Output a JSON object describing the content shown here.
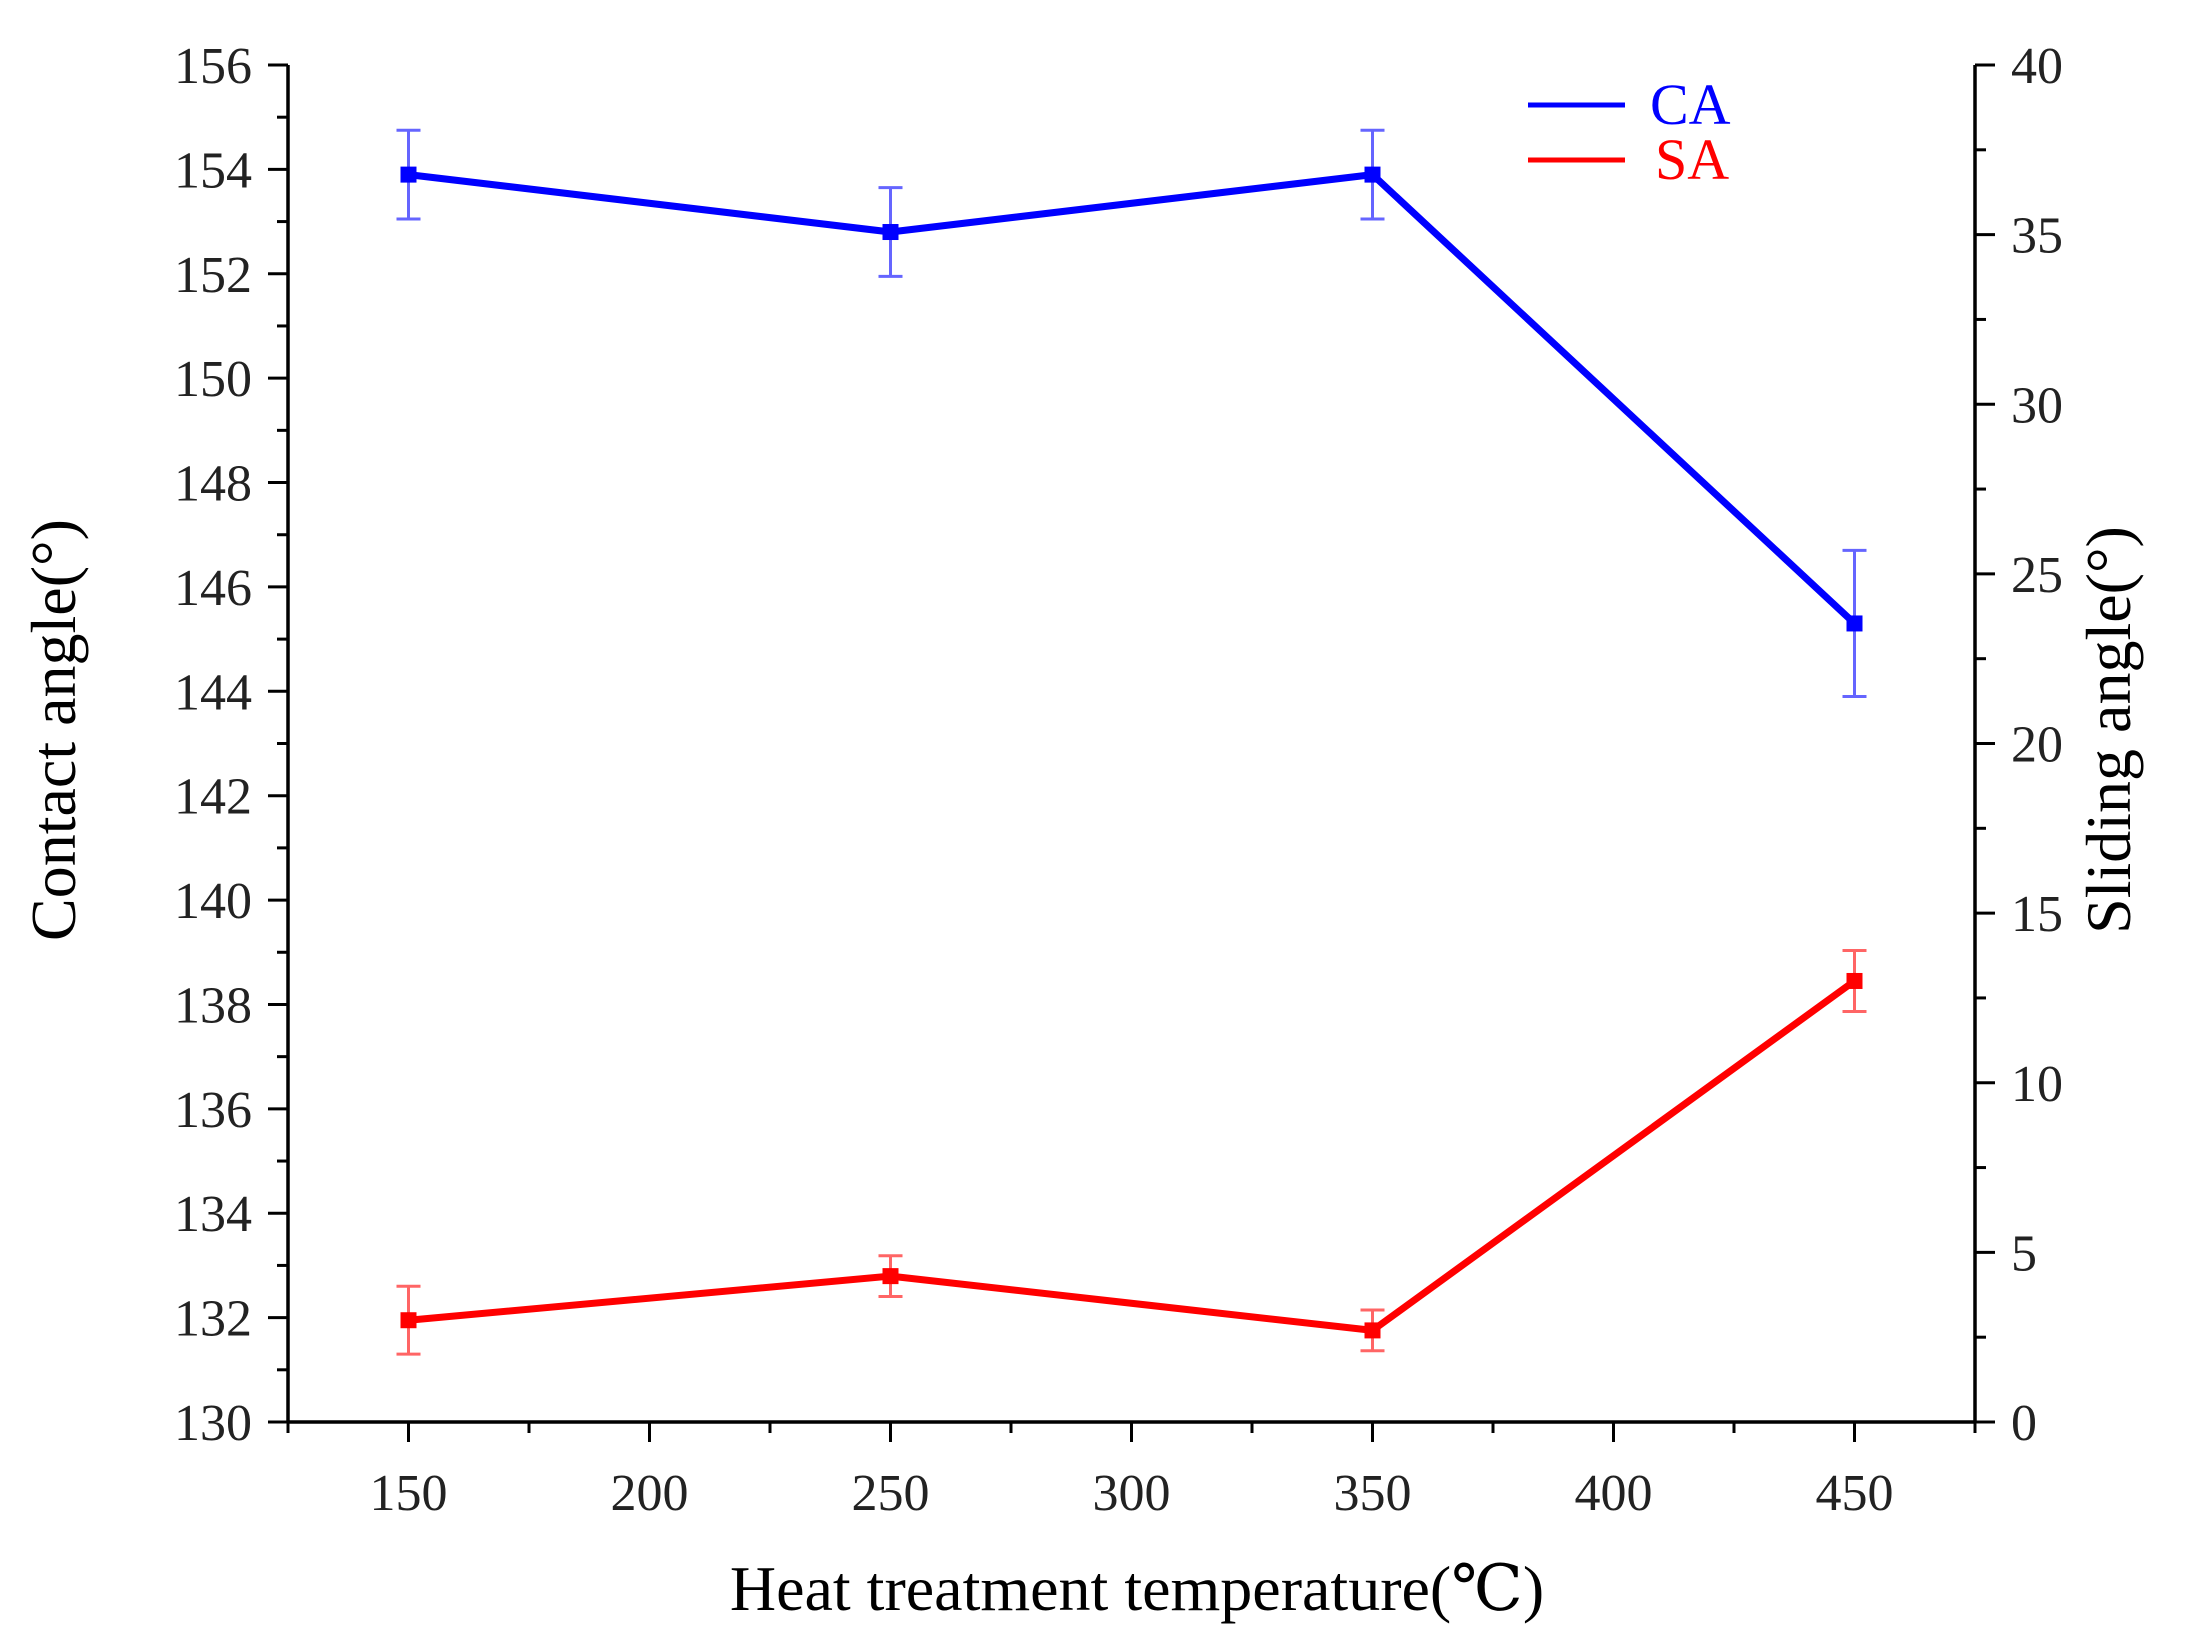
{
  "chart_data": {
    "type": "line",
    "x": [
      150,
      250,
      350,
      450
    ],
    "xlabel": "Heat treatment temperature(℃)",
    "xlim": [
      125,
      475
    ],
    "xticks": [
      150,
      200,
      250,
      300,
      350,
      400,
      450
    ],
    "ylabel_left": "Contact angle(°)",
    "ylim_left": [
      130,
      156
    ],
    "yticks_left": [
      130,
      132,
      134,
      136,
      138,
      140,
      142,
      144,
      146,
      148,
      150,
      152,
      154,
      156
    ],
    "ylabel_right": "Sliding angle(°)",
    "ylim_right": [
      0,
      40
    ],
    "yticks_right": [
      0,
      5,
      10,
      15,
      20,
      25,
      30,
      35,
      40
    ],
    "series": [
      {
        "name": "CA",
        "axis": "left",
        "color": "#0000ff",
        "values": [
          153.9,
          152.8,
          153.9,
          145.3
        ],
        "errors": [
          0.85,
          0.85,
          0.85,
          1.4
        ]
      },
      {
        "name": "SA",
        "axis": "right",
        "color": "#ff0000",
        "values": [
          3.0,
          4.3,
          2.7,
          13.0
        ],
        "errors": [
          1.0,
          0.6,
          0.6,
          0.9
        ]
      }
    ],
    "legend_position": "top-right"
  }
}
